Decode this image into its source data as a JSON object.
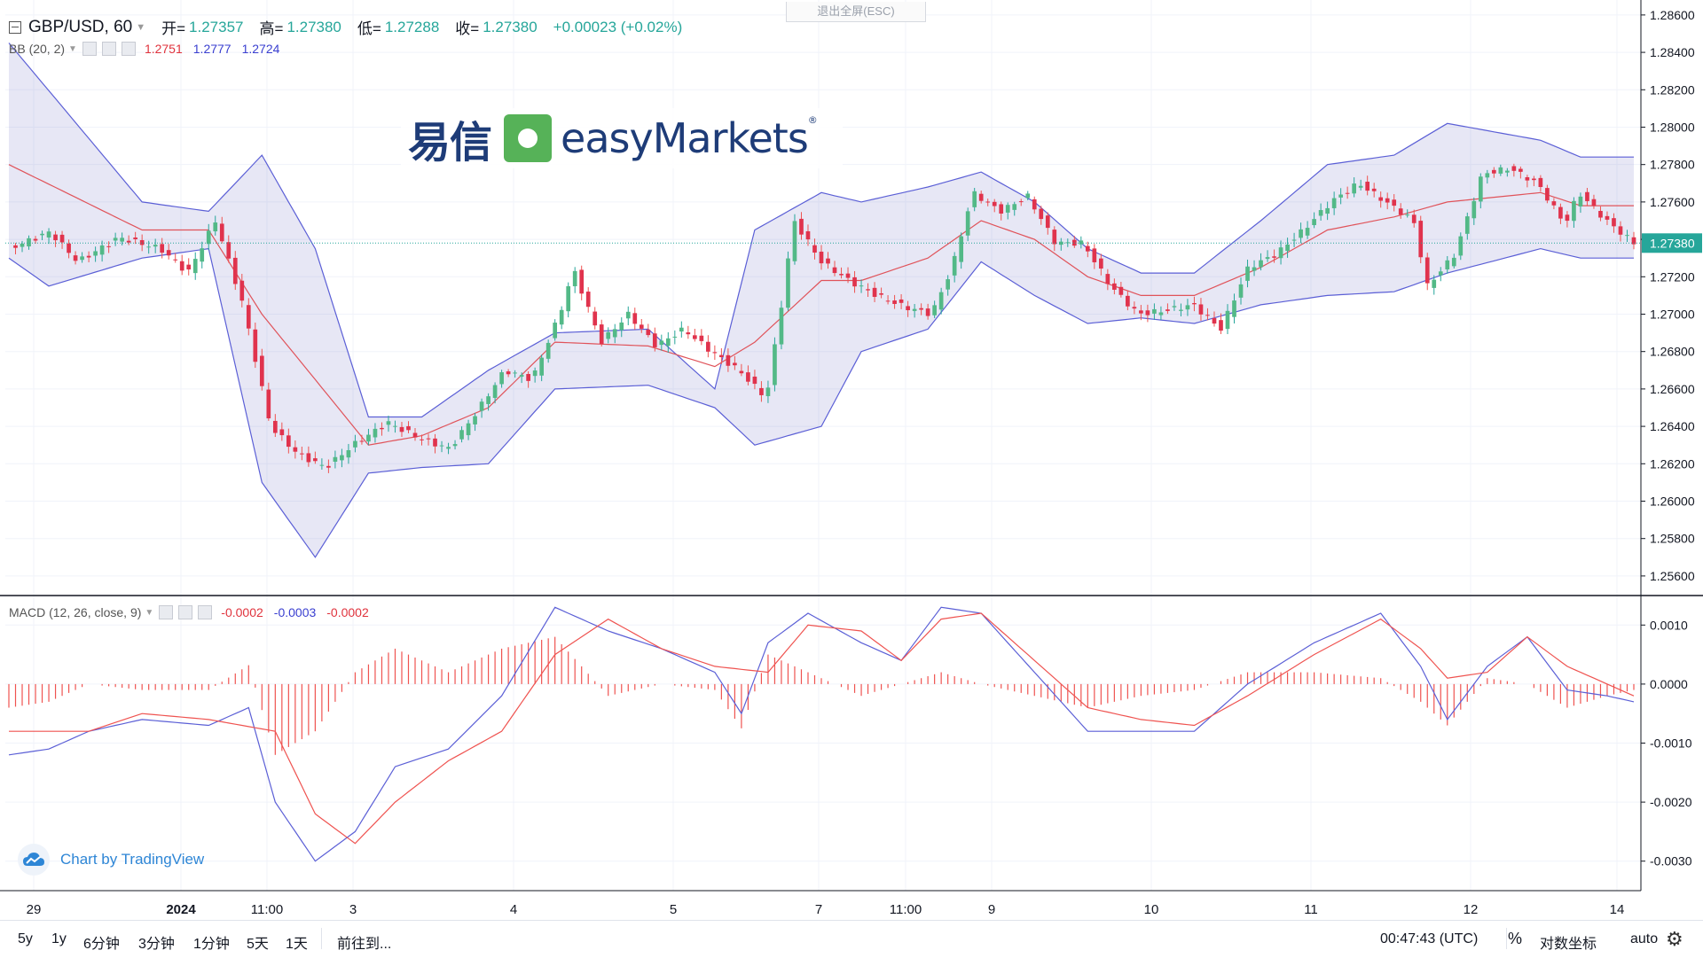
{
  "legend": {
    "symbol": "GBP/USD, 60",
    "open_label": "开=",
    "open": "1.27357",
    "high_label": "高=",
    "high": "1.27380",
    "low_label": "低=",
    "low": "1.27288",
    "close_label": "收=",
    "close": "1.27380",
    "change": "+0.00023 (+0.02%)"
  },
  "bb_legend": {
    "label": "BB (20, 2)",
    "v1": "1.2751",
    "v2": "1.2777",
    "v3": "1.2724"
  },
  "macd_legend": {
    "label": "MACD (12, 26, close, 9)",
    "v1": "-0.0002",
    "v2": "-0.0003",
    "v3": "-0.0002"
  },
  "exit_fullscreen": "退出全屏(ESC)",
  "logo": {
    "cn": "易信",
    "en": "easyMarkets",
    "reg": "®"
  },
  "branding": "Chart by TradingView",
  "bottom": {
    "ranges": [
      "5y",
      "1y",
      "6分钟",
      "3分钟",
      "1分钟",
      "5天",
      "1天"
    ],
    "goto": "前往到...",
    "time": "00:47:43 (UTC)",
    "percent": "%",
    "log": "对数坐标",
    "auto": "auto"
  },
  "colors": {
    "up": "#26a69a",
    "up_fill": "#53b987",
    "down": "#ef5350",
    "down_fill": "#e0334d",
    "bb_band": "#5b5fd6",
    "bb_mid": "#e0535a",
    "bb_fill": "rgba(120,123,200,0.18)",
    "macd": "#5b5fd6",
    "signal": "#ef5350",
    "hist": "#ef5350",
    "last_price_bg": "#26a69a"
  },
  "chart_data": [
    {
      "type": "candlestick",
      "title": "GBP/USD, 60",
      "ylim": [
        1.255,
        1.2868
      ],
      "y_ticks": [
        "1.28600",
        "1.28400",
        "1.28200",
        "1.28000",
        "1.27800",
        "1.27600",
        "1.27400",
        "1.27200",
        "1.27000",
        "1.26800",
        "1.26600",
        "1.26400",
        "1.26200",
        "1.26000",
        "1.25800",
        "1.25600"
      ],
      "last_price": "1.27380",
      "x_labels": [
        "29",
        "2024",
        "11:00",
        "3",
        "4",
        "5",
        "7",
        "11:00",
        "9",
        "10",
        "11",
        "12",
        "14"
      ],
      "key_closes": [
        [
          0,
          1.2735
        ],
        [
          6,
          1.2744
        ],
        [
          10,
          1.2728
        ],
        [
          16,
          1.2741
        ],
        [
          22,
          1.2735
        ],
        [
          26,
          1.2722
        ],
        [
          30,
          1.275
        ],
        [
          34,
          1.2705
        ],
        [
          38,
          1.264
        ],
        [
          42,
          1.2625
        ],
        [
          46,
          1.2618
        ],
        [
          50,
          1.263
        ],
        [
          55,
          1.2642
        ],
        [
          60,
          1.2633
        ],
        [
          64,
          1.2628
        ],
        [
          68,
          1.2648
        ],
        [
          72,
          1.267
        ],
        [
          76,
          1.2665
        ],
        [
          80,
          1.27
        ],
        [
          82,
          1.2724
        ],
        [
          86,
          1.2685
        ],
        [
          90,
          1.27
        ],
        [
          94,
          1.2683
        ],
        [
          98,
          1.2692
        ],
        [
          102,
          1.268
        ],
        [
          106,
          1.267
        ],
        [
          110,
          1.2655
        ],
        [
          112,
          1.27
        ],
        [
          114,
          1.275
        ],
        [
          118,
          1.2728
        ],
        [
          122,
          1.2718
        ],
        [
          126,
          1.271
        ],
        [
          130,
          1.2704
        ],
        [
          134,
          1.27
        ],
        [
          137,
          1.2725
        ],
        [
          140,
          1.2765
        ],
        [
          144,
          1.2755
        ],
        [
          148,
          1.2763
        ],
        [
          152,
          1.2738
        ],
        [
          156,
          1.2738
        ],
        [
          160,
          1.2715
        ],
        [
          164,
          1.27
        ],
        [
          168,
          1.2702
        ],
        [
          172,
          1.2705
        ],
        [
          176,
          1.2692
        ],
        [
          180,
          1.2725
        ],
        [
          184,
          1.2732
        ],
        [
          188,
          1.2745
        ],
        [
          192,
          1.276
        ],
        [
          196,
          1.277
        ],
        [
          200,
          1.276
        ],
        [
          204,
          1.275
        ],
        [
          206,
          1.2715
        ],
        [
          210,
          1.2732
        ],
        [
          214,
          1.2775
        ],
        [
          218,
          1.2778
        ],
        [
          222,
          1.277
        ],
        [
          226,
          1.2748
        ],
        [
          228,
          1.2765
        ],
        [
          232,
          1.275
        ],
        [
          236,
          1.2738
        ]
      ],
      "bb_upper": [
        [
          0,
          1.2845
        ],
        [
          20,
          1.276
        ],
        [
          30,
          1.2755
        ],
        [
          38,
          1.2785
        ],
        [
          46,
          1.2735
        ],
        [
          54,
          1.2645
        ],
        [
          62,
          1.2645
        ],
        [
          72,
          1.267
        ],
        [
          82,
          1.269
        ],
        [
          96,
          1.2692
        ],
        [
          106,
          1.266
        ],
        [
          112,
          1.2745
        ],
        [
          122,
          1.2765
        ],
        [
          128,
          1.276
        ],
        [
          138,
          1.2768
        ],
        [
          146,
          1.2776
        ],
        [
          154,
          1.276
        ],
        [
          162,
          1.2735
        ],
        [
          170,
          1.2722
        ],
        [
          178,
          1.2722
        ],
        [
          188,
          1.275
        ],
        [
          198,
          1.278
        ],
        [
          208,
          1.2785
        ],
        [
          216,
          1.2802
        ],
        [
          230,
          1.2793
        ],
        [
          236,
          1.2784
        ]
      ],
      "bb_mid": [
        [
          0,
          1.278
        ],
        [
          20,
          1.2745
        ],
        [
          30,
          1.2745
        ],
        [
          38,
          1.27
        ],
        [
          46,
          1.2665
        ],
        [
          54,
          1.263
        ],
        [
          62,
          1.2635
        ],
        [
          72,
          1.265
        ],
        [
          82,
          1.2685
        ],
        [
          96,
          1.2683
        ],
        [
          106,
          1.2672
        ],
        [
          112,
          1.2685
        ],
        [
          122,
          1.2718
        ],
        [
          128,
          1.2718
        ],
        [
          138,
          1.273
        ],
        [
          146,
          1.275
        ],
        [
          154,
          1.274
        ],
        [
          162,
          1.272
        ],
        [
          170,
          1.271
        ],
        [
          178,
          1.271
        ],
        [
          188,
          1.2725
        ],
        [
          198,
          1.2745
        ],
        [
          208,
          1.2752
        ],
        [
          216,
          1.276
        ],
        [
          230,
          1.2765
        ],
        [
          236,
          1.2758
        ]
      ],
      "bb_lower": [
        [
          0,
          1.273
        ],
        [
          6,
          1.2715
        ],
        [
          20,
          1.273
        ],
        [
          30,
          1.2735
        ],
        [
          38,
          1.261
        ],
        [
          46,
          1.257
        ],
        [
          54,
          1.2615
        ],
        [
          62,
          1.2618
        ],
        [
          72,
          1.262
        ],
        [
          82,
          1.266
        ],
        [
          96,
          1.2662
        ],
        [
          106,
          1.265
        ],
        [
          112,
          1.263
        ],
        [
          122,
          1.264
        ],
        [
          128,
          1.268
        ],
        [
          138,
          1.2692
        ],
        [
          146,
          1.2728
        ],
        [
          154,
          1.271
        ],
        [
          162,
          1.2695
        ],
        [
          170,
          1.2698
        ],
        [
          178,
          1.2695
        ],
        [
          188,
          1.2705
        ],
        [
          198,
          1.271
        ],
        [
          208,
          1.2712
        ],
        [
          216,
          1.2722
        ],
        [
          230,
          1.2735
        ],
        [
          236,
          1.273
        ]
      ]
    },
    {
      "type": "line",
      "title": "MACD (12, 26, close, 9)",
      "ylim": [
        -0.0035,
        0.0015
      ],
      "y_ticks": [
        "0.0010",
        "0.0000",
        "-0.0010",
        "-0.0020",
        "-0.0030"
      ],
      "series": [
        {
          "name": "MACD",
          "points": [
            [
              0,
              -0.0012
            ],
            [
              6,
              -0.0011
            ],
            [
              12,
              -0.0008
            ],
            [
              20,
              -0.0006
            ],
            [
              30,
              -0.0007
            ],
            [
              36,
              -0.0004
            ],
            [
              40,
              -0.002
            ],
            [
              46,
              -0.003
            ],
            [
              52,
              -0.0025
            ],
            [
              58,
              -0.0014
            ],
            [
              66,
              -0.0011
            ],
            [
              74,
              -0.0002
            ],
            [
              82,
              0.0013
            ],
            [
              90,
              0.0009
            ],
            [
              98,
              0.0006
            ],
            [
              106,
              0.0002
            ],
            [
              110,
              -0.0005
            ],
            [
              114,
              0.0007
            ],
            [
              120,
              0.0012
            ],
            [
              128,
              0.0007
            ],
            [
              134,
              0.0004
            ],
            [
              140,
              0.0013
            ],
            [
              146,
              0.0012
            ],
            [
              154,
              0.0002
            ],
            [
              162,
              -0.0008
            ],
            [
              170,
              -0.0008
            ],
            [
              178,
              -0.0008
            ],
            [
              186,
              0.0
            ],
            [
              196,
              0.0007
            ],
            [
              206,
              0.0012
            ],
            [
              212,
              0.0003
            ],
            [
              216,
              -0.0006
            ],
            [
              222,
              0.0003
            ],
            [
              228,
              0.0008
            ],
            [
              234,
              -0.0001
            ],
            [
              240,
              -0.0002
            ],
            [
              244,
              -0.0003
            ]
          ]
        },
        {
          "name": "Signal",
          "points": [
            [
              0,
              -0.0008
            ],
            [
              12,
              -0.0008
            ],
            [
              20,
              -0.0005
            ],
            [
              30,
              -0.0006
            ],
            [
              40,
              -0.0008
            ],
            [
              46,
              -0.0022
            ],
            [
              52,
              -0.0027
            ],
            [
              58,
              -0.002
            ],
            [
              66,
              -0.0013
            ],
            [
              74,
              -0.0008
            ],
            [
              82,
              0.0005
            ],
            [
              90,
              0.0011
            ],
            [
              98,
              0.0006
            ],
            [
              106,
              0.0003
            ],
            [
              114,
              0.0002
            ],
            [
              120,
              0.001
            ],
            [
              128,
              0.0009
            ],
            [
              134,
              0.0004
            ],
            [
              140,
              0.0011
            ],
            [
              146,
              0.0012
            ],
            [
              154,
              0.0004
            ],
            [
              162,
              -0.0004
            ],
            [
              170,
              -0.0006
            ],
            [
              178,
              -0.0007
            ],
            [
              186,
              -0.0002
            ],
            [
              196,
              0.0005
            ],
            [
              206,
              0.0011
            ],
            [
              212,
              0.0006
            ],
            [
              216,
              0.0001
            ],
            [
              222,
              0.0002
            ],
            [
              228,
              0.0008
            ],
            [
              234,
              0.0003
            ],
            [
              240,
              0.0
            ],
            [
              244,
              -0.0002
            ]
          ]
        }
      ]
    }
  ]
}
